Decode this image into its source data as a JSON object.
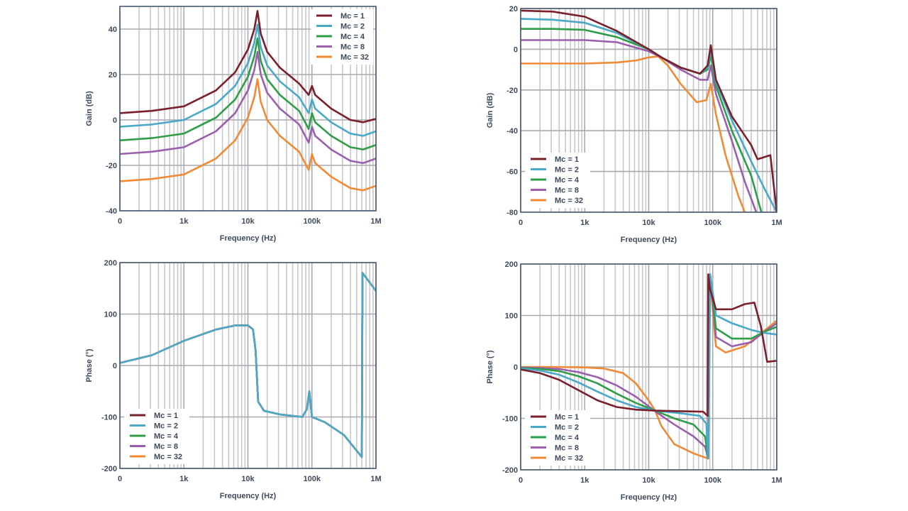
{
  "x_axis_note": "x positions expressed in decades: 0 = label '0', 1 = '1k', 2 = '10k', 3 = '100k', 4 = '1M'",
  "legend_labels": [
    "Mc = 1",
    "Mc = 2",
    "Mc = 4",
    "Mc = 8",
    "Mc = 32"
  ],
  "colors": {
    "Mc = 1": "#7a1f2b",
    "Mc = 2": "#4aa8c8",
    "Mc = 4": "#2e9e48",
    "Mc = 8": "#9b5fae",
    "Mc = 32": "#f08a34"
  },
  "chart_data": [
    {
      "id": "gain-top-left",
      "type": "line",
      "title": "",
      "xlabel": "Frequency (Hz)",
      "ylabel": "Gain (dB)",
      "xscale": "log-decades",
      "xticks": [
        0,
        1,
        2,
        3,
        4
      ],
      "xtick_labels": [
        "0",
        "1k",
        "10k",
        "100k",
        "1M"
      ],
      "ylim": [
        -40,
        50
      ],
      "yticks": [
        -40,
        -20,
        0,
        20,
        40
      ],
      "ytick_labels": [
        "-40",
        "-20",
        "0",
        "20",
        "40"
      ],
      "grid": true,
      "legend_position": "top-right",
      "series": [
        {
          "name": "Mc = 1",
          "x": [
            0,
            0.5,
            1,
            1.5,
            1.8,
            2.0,
            2.1,
            2.15,
            2.2,
            2.3,
            2.5,
            2.8,
            2.95,
            3.0,
            3.05,
            3.3,
            3.6,
            3.8,
            4.0
          ],
          "y": [
            3,
            4,
            6,
            13,
            21,
            31,
            40,
            48,
            38,
            30,
            23,
            16,
            11,
            15,
            11,
            5,
            0,
            -1,
            0.5
          ]
        },
        {
          "name": "Mc = 2",
          "x": [
            0,
            0.5,
            1,
            1.5,
            1.8,
            2.0,
            2.1,
            2.15,
            2.2,
            2.3,
            2.5,
            2.8,
            2.95,
            3.0,
            3.05,
            3.3,
            3.6,
            3.8,
            4.0
          ],
          "y": [
            -3,
            -2,
            0,
            7,
            15,
            25,
            34,
            42,
            32,
            24,
            17,
            10,
            3,
            9,
            5,
            -1,
            -6,
            -7,
            -5
          ]
        },
        {
          "name": "Mc = 4",
          "x": [
            0,
            0.5,
            1,
            1.5,
            1.8,
            2.0,
            2.1,
            2.15,
            2.2,
            2.3,
            2.5,
            2.8,
            2.95,
            3.0,
            3.05,
            3.3,
            3.6,
            3.8,
            4.0
          ],
          "y": [
            -9,
            -8,
            -6,
            1,
            9,
            19,
            28,
            36,
            26,
            18,
            11,
            4,
            -4,
            3,
            -1,
            -7,
            -12,
            -13,
            -11
          ]
        },
        {
          "name": "Mc = 8",
          "x": [
            0,
            0.5,
            1,
            1.5,
            1.8,
            2.0,
            2.1,
            2.15,
            2.2,
            2.3,
            2.5,
            2.8,
            2.95,
            3.0,
            3.05,
            3.3,
            3.6,
            3.8,
            4.0
          ],
          "y": [
            -15,
            -14,
            -12,
            -5,
            3,
            13,
            22,
            30,
            20,
            12,
            5,
            -2,
            -10,
            -3,
            -7,
            -13,
            -18,
            -19,
            -17
          ]
        },
        {
          "name": "Mc = 32",
          "x": [
            0,
            0.5,
            1,
            1.5,
            1.8,
            2.0,
            2.1,
            2.15,
            2.2,
            2.3,
            2.5,
            2.8,
            2.95,
            3.0,
            3.05,
            3.3,
            3.6,
            3.8,
            4.0
          ],
          "y": [
            -27,
            -26,
            -24,
            -17,
            -9,
            1,
            10,
            18,
            8,
            0,
            -7,
            -14,
            -22,
            -15,
            -19,
            -25,
            -30,
            -31,
            -29
          ]
        }
      ]
    },
    {
      "id": "gain-top-right",
      "type": "line",
      "title": "",
      "xlabel": "Frequency (Hz)",
      "ylabel": "Gain (dB)",
      "xscale": "log-decades",
      "xticks": [
        0,
        1,
        2,
        3,
        4
      ],
      "xtick_labels": [
        "0",
        "1k",
        "10k",
        "100k",
        "1M"
      ],
      "ylim": [
        -80,
        20
      ],
      "yticks": [
        -80,
        -60,
        -40,
        -20,
        0,
        20
      ],
      "ytick_labels": [
        "-80",
        "-60",
        "-40",
        "-20",
        "0",
        "20"
      ],
      "grid": true,
      "legend_position": "bottom-left",
      "series": [
        {
          "name": "Mc = 1",
          "x": [
            0,
            0.5,
            1,
            1.5,
            2.0,
            2.2,
            2.5,
            2.8,
            2.92,
            2.97,
            3.05,
            3.3,
            3.6,
            3.7,
            3.8,
            3.9,
            4.0
          ],
          "y": [
            19,
            18.5,
            16,
            9,
            0,
            -4,
            -9,
            -12,
            -8,
            2,
            -15,
            -33,
            -47,
            -54,
            -53,
            -52,
            -80
          ]
        },
        {
          "name": "Mc = 2",
          "x": [
            0,
            0.5,
            1,
            1.5,
            2.0,
            2.2,
            2.5,
            2.8,
            2.92,
            2.97,
            3.05,
            3.3,
            3.6,
            3.8,
            4.0
          ],
          "y": [
            15,
            14.5,
            13,
            8,
            0,
            -4,
            -9,
            -12,
            -9,
            0,
            -16,
            -35,
            -55,
            -68,
            -80
          ]
        },
        {
          "name": "Mc = 4",
          "x": [
            0,
            0.5,
            1,
            1.5,
            2.0,
            2.2,
            2.5,
            2.8,
            2.92,
            2.97,
            3.05,
            3.3,
            3.6,
            3.76
          ],
          "y": [
            10,
            10,
            9.5,
            6,
            0,
            -4,
            -9,
            -12,
            -10,
            -3,
            -18,
            -40,
            -62,
            -80
          ]
        },
        {
          "name": "Mc = 8",
          "x": [
            0,
            0.5,
            1,
            1.5,
            2.0,
            2.2,
            2.5,
            2.8,
            2.92,
            2.97,
            3.05,
            3.3,
            3.5,
            3.68
          ],
          "y": [
            4.5,
            4.5,
            4.5,
            3.5,
            -1,
            -4,
            -10,
            -15,
            -15,
            -8,
            -22,
            -45,
            -65,
            -80
          ]
        },
        {
          "name": "Mc = 32",
          "x": [
            0,
            0.5,
            1,
            1.5,
            1.8,
            2.0,
            2.15,
            2.3,
            2.5,
            2.75,
            2.9,
            2.97,
            3.05,
            3.2,
            3.4,
            3.5
          ],
          "y": [
            -7,
            -7,
            -7,
            -6.5,
            -5.5,
            -4,
            -3.5,
            -8,
            -17,
            -26,
            -25,
            -17,
            -32,
            -52,
            -72,
            -80
          ]
        }
      ]
    },
    {
      "id": "phase-bottom-left",
      "type": "line",
      "title": "",
      "xlabel": "Frequency (Hz)",
      "ylabel": "Phase (°)",
      "xscale": "log-decades",
      "xticks": [
        0,
        1,
        2,
        3,
        4
      ],
      "xtick_labels": [
        "0",
        "1k",
        "10k",
        "100k",
        "1M"
      ],
      "ylim": [
        -200,
        200
      ],
      "yticks": [
        -200,
        -100,
        0,
        100,
        200
      ],
      "ytick_labels": [
        "-200",
        "-100",
        "0",
        "100",
        "200"
      ],
      "grid": true,
      "legend_position": "bottom-left",
      "series": [
        {
          "name": "Mc = 1",
          "x": [
            0,
            0.5,
            1,
            1.5,
            1.8,
            2.0,
            2.08,
            2.12,
            2.16,
            2.25,
            2.5,
            2.85,
            2.92,
            2.96,
            3.0,
            3.2,
            3.5,
            3.78,
            3.79,
            4.0
          ],
          "y": [
            5,
            20,
            48,
            70,
            78,
            78,
            70,
            30,
            -70,
            -88,
            -95,
            -100,
            -85,
            -50,
            -100,
            -110,
            -135,
            -178,
            180,
            145
          ]
        },
        {
          "name": "Mc = 2",
          "x": [
            0,
            0.5,
            1,
            1.5,
            1.8,
            2.0,
            2.08,
            2.12,
            2.16,
            2.25,
            2.5,
            2.85,
            2.92,
            2.96,
            3.0,
            3.2,
            3.5,
            3.78,
            3.79,
            4.0
          ],
          "y": [
            5,
            20,
            48,
            70,
            78,
            78,
            70,
            30,
            -70,
            -88,
            -95,
            -100,
            -85,
            -50,
            -100,
            -110,
            -135,
            -178,
            180,
            145
          ]
        },
        {
          "name": "Mc = 4",
          "x": [
            0,
            0.5,
            1,
            1.5,
            1.8,
            2.0,
            2.08,
            2.12,
            2.16,
            2.25,
            2.5,
            2.85,
            2.92,
            2.96,
            3.0,
            3.2,
            3.5,
            3.78,
            3.79,
            4.0
          ],
          "y": [
            5,
            20,
            48,
            70,
            78,
            78,
            70,
            30,
            -70,
            -88,
            -95,
            -100,
            -85,
            -50,
            -100,
            -110,
            -135,
            -178,
            180,
            145
          ]
        },
        {
          "name": "Mc = 8",
          "x": [
            0,
            0.5,
            1,
            1.5,
            1.8,
            2.0,
            2.08,
            2.12,
            2.16,
            2.25,
            2.5,
            2.85,
            2.92,
            2.96,
            3.0,
            3.2,
            3.5,
            3.78,
            3.79,
            4.0
          ],
          "y": [
            5,
            20,
            48,
            70,
            78,
            78,
            70,
            30,
            -70,
            -88,
            -95,
            -100,
            -85,
            -50,
            -100,
            -110,
            -135,
            -178,
            180,
            145
          ]
        },
        {
          "name": "Mc = 32",
          "x": [
            0,
            0.5,
            1,
            1.5,
            1.8,
            2.0,
            2.08,
            2.12,
            2.16,
            2.25,
            2.5,
            2.85,
            2.92,
            2.96,
            3.0,
            3.2,
            3.5,
            3.78,
            3.79,
            4.0
          ],
          "y": [
            5,
            20,
            48,
            70,
            78,
            78,
            70,
            30,
            -70,
            -88,
            -95,
            -100,
            -85,
            -50,
            -100,
            -110,
            -135,
            -178,
            180,
            145
          ]
        }
      ],
      "visible_series_note": "All series overlap; Mc = 2 drawn on top"
    },
    {
      "id": "phase-bottom-right",
      "type": "line",
      "title": "",
      "xlabel": "Frequency (Hz)",
      "ylabel": "Phase (°)",
      "xscale": "log-decades",
      "xticks": [
        0,
        1,
        2,
        3,
        4
      ],
      "xtick_labels": [
        "0",
        "1k",
        "10k",
        "100k",
        "1M"
      ],
      "ylim": [
        -200,
        200
      ],
      "yticks": [
        -200,
        -100,
        0,
        100,
        200
      ],
      "ytick_labels": [
        "-200",
        "-100",
        "0",
        "100",
        "200"
      ],
      "grid": true,
      "legend_position": "bottom-left",
      "series": [
        {
          "name": "Mc = 1",
          "x": [
            0,
            0.3,
            0.6,
            0.9,
            1.2,
            1.5,
            1.8,
            2.1,
            2.5,
            2.85,
            2.92,
            2.93,
            2.96,
            3.05,
            3.3,
            3.5,
            3.65,
            3.75,
            3.85,
            4.0
          ],
          "y": [
            -5,
            -12,
            -25,
            -45,
            -65,
            -78,
            -83,
            -85,
            -86,
            -87,
            -95,
            180,
            150,
            112,
            112,
            122,
            125,
            80,
            10,
            12
          ]
        },
        {
          "name": "Mc = 2",
          "x": [
            0,
            0.3,
            0.6,
            0.9,
            1.2,
            1.5,
            1.8,
            2.1,
            2.5,
            2.8,
            2.9,
            2.93,
            2.96,
            3.05,
            3.3,
            3.6,
            3.8,
            4.0
          ],
          "y": [
            -3,
            -7,
            -15,
            -30,
            -48,
            -65,
            -78,
            -85,
            -90,
            -95,
            -110,
            -178,
            180,
            100,
            85,
            72,
            66,
            63
          ]
        },
        {
          "name": "Mc = 4",
          "x": [
            0,
            0.3,
            0.6,
            0.9,
            1.2,
            1.5,
            1.8,
            2.1,
            2.4,
            2.7,
            2.88,
            2.93,
            2.96,
            3.05,
            3.3,
            3.6,
            3.8,
            4.0
          ],
          "y": [
            -2,
            -4,
            -8,
            -18,
            -32,
            -52,
            -70,
            -85,
            -100,
            -112,
            -135,
            -178,
            180,
            75,
            55,
            55,
            68,
            78
          ]
        },
        {
          "name": "Mc = 8",
          "x": [
            0,
            0.3,
            0.6,
            0.9,
            1.2,
            1.5,
            1.8,
            2.1,
            2.4,
            2.7,
            2.88,
            2.93,
            2.96,
            3.05,
            3.3,
            3.6,
            3.8,
            4.0
          ],
          "y": [
            -1,
            -2,
            -4,
            -10,
            -20,
            -36,
            -58,
            -86,
            -112,
            -135,
            -155,
            -178,
            180,
            58,
            40,
            48,
            68,
            85
          ]
        },
        {
          "name": "Mc = 32",
          "x": [
            0,
            0.5,
            1,
            1.3,
            1.6,
            1.8,
            2.0,
            2.1,
            2.2,
            2.4,
            2.7,
            2.88,
            2.92,
            2.95,
            3.05,
            3.2,
            3.5,
            3.8,
            4.0
          ],
          "y": [
            0,
            0,
            -1,
            -3,
            -12,
            -32,
            -65,
            -85,
            -115,
            -150,
            -168,
            -176,
            -178,
            180,
            40,
            28,
            40,
            70,
            90
          ]
        }
      ]
    }
  ]
}
